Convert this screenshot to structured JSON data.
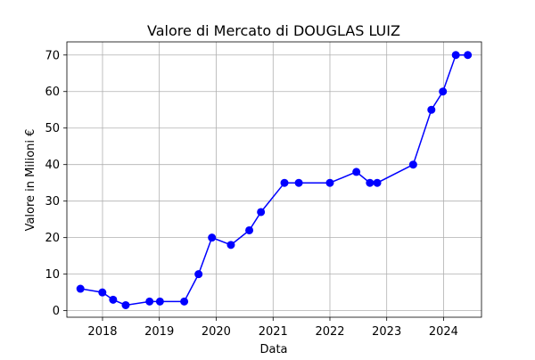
{
  "chart_data": {
    "type": "line",
    "title": "Valore di Mercato di DOUGLAS LUIZ",
    "xlabel": "Data",
    "ylabel": "Valore in Milioni €",
    "xlim": [
      "2017-05-17",
      "2024-09-01"
    ],
    "ylim": [
      -1.8,
      73.6
    ],
    "xticks": [
      "2018",
      "2019",
      "2020",
      "2021",
      "2022",
      "2023",
      "2024"
    ],
    "yticks": [
      0,
      10,
      20,
      30,
      40,
      50,
      60,
      70
    ],
    "grid": true,
    "color": "#0000ff",
    "series": [
      {
        "x": [
          "2017-08-12",
          "2017-12-31",
          "2018-03-10",
          "2018-05-30",
          "2018-10-30",
          "2019-01-05",
          "2019-06-10",
          "2019-09-10",
          "2019-12-05",
          "2020-04-05",
          "2020-08-01",
          "2020-10-15",
          "2021-03-15",
          "2021-06-15",
          "2022-01-01",
          "2022-06-20",
          "2022-09-15",
          "2022-11-01",
          "2023-06-20",
          "2023-10-15",
          "2023-12-28",
          "2024-03-20",
          "2024-06-05"
        ],
        "values": [
          6,
          5,
          3,
          1.5,
          2.5,
          2.5,
          2.5,
          10,
          20,
          18,
          22,
          27,
          35,
          35,
          35,
          38,
          35,
          35,
          40,
          55,
          60,
          70,
          70
        ]
      }
    ]
  }
}
